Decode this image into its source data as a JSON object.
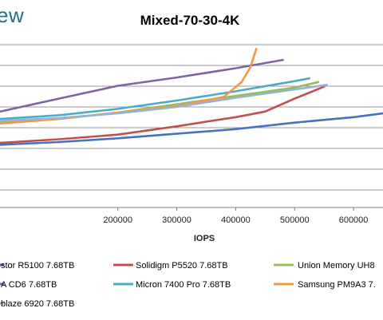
{
  "brand": {
    "text": "ew"
  },
  "chart_data": {
    "type": "line",
    "title": "Mixed-70-30-4K",
    "xlabel": "IOPS",
    "ylabel": "",
    "xlim": [
      0,
      650000
    ],
    "ylim": [
      0,
      9
    ],
    "x_ticks": [
      "200000",
      "300000",
      "400000",
      "500000",
      "600000"
    ],
    "grid": "horizontal",
    "legend": "bottom",
    "series": [
      {
        "name": "stor R5100 7.68TB",
        "color": "#4472c4",
        "points": [
          [
            0,
            3.4
          ],
          [
            100000,
            3.55
          ],
          [
            200000,
            3.75
          ],
          [
            300000,
            4.0
          ],
          [
            400000,
            4.25
          ],
          [
            500000,
            4.6
          ],
          [
            600000,
            4.9
          ],
          [
            650000,
            5.1
          ]
        ]
      },
      {
        "name": "Solidigm P5520 7.68TB",
        "color": "#c0504d",
        "points": [
          [
            0,
            3.5
          ],
          [
            100000,
            3.7
          ],
          [
            200000,
            3.95
          ],
          [
            300000,
            4.4
          ],
          [
            400000,
            4.9
          ],
          [
            450000,
            5.2
          ],
          [
            500000,
            5.9
          ],
          [
            550000,
            6.55
          ]
        ]
      },
      {
        "name": "Union Memory UH8",
        "color": "#9bbb59",
        "points": [
          [
            0,
            4.6
          ],
          [
            100000,
            4.8
          ],
          [
            200000,
            5.15
          ],
          [
            300000,
            5.6
          ],
          [
            400000,
            6.05
          ],
          [
            500000,
            6.5
          ],
          [
            540000,
            6.8
          ]
        ]
      },
      {
        "name": "A CD6 7.68TB",
        "color": "#8064a2",
        "points": [
          [
            0,
            5.2
          ],
          [
            100000,
            5.9
          ],
          [
            200000,
            6.6
          ],
          [
            300000,
            7.05
          ],
          [
            400000,
            7.55
          ],
          [
            480000,
            8.0
          ]
        ]
      },
      {
        "name": "Micron 7400 Pro 7.68TB",
        "color": "#4bacc6",
        "points": [
          [
            0,
            4.8
          ],
          [
            100000,
            5.0
          ],
          [
            200000,
            5.35
          ],
          [
            300000,
            5.8
          ],
          [
            400000,
            6.3
          ],
          [
            500000,
            6.85
          ],
          [
            525000,
            7.0
          ]
        ]
      },
      {
        "name": "Samsung PM9A3 7.",
        "color": "#f79646",
        "points": [
          [
            0,
            4.55
          ],
          [
            100000,
            4.8
          ],
          [
            200000,
            5.15
          ],
          [
            300000,
            5.5
          ],
          [
            380000,
            6.0
          ],
          [
            410000,
            6.8
          ],
          [
            425000,
            7.6
          ],
          [
            435000,
            8.6
          ]
        ]
      },
      {
        "name": "blaze 6920 7.68TB",
        "color": "#95b3d7",
        "points": [
          [
            0,
            4.7
          ],
          [
            100000,
            4.85
          ],
          [
            200000,
            5.1
          ],
          [
            300000,
            5.45
          ],
          [
            400000,
            5.95
          ],
          [
            500000,
            6.4
          ],
          [
            555000,
            6.65
          ]
        ]
      }
    ]
  }
}
